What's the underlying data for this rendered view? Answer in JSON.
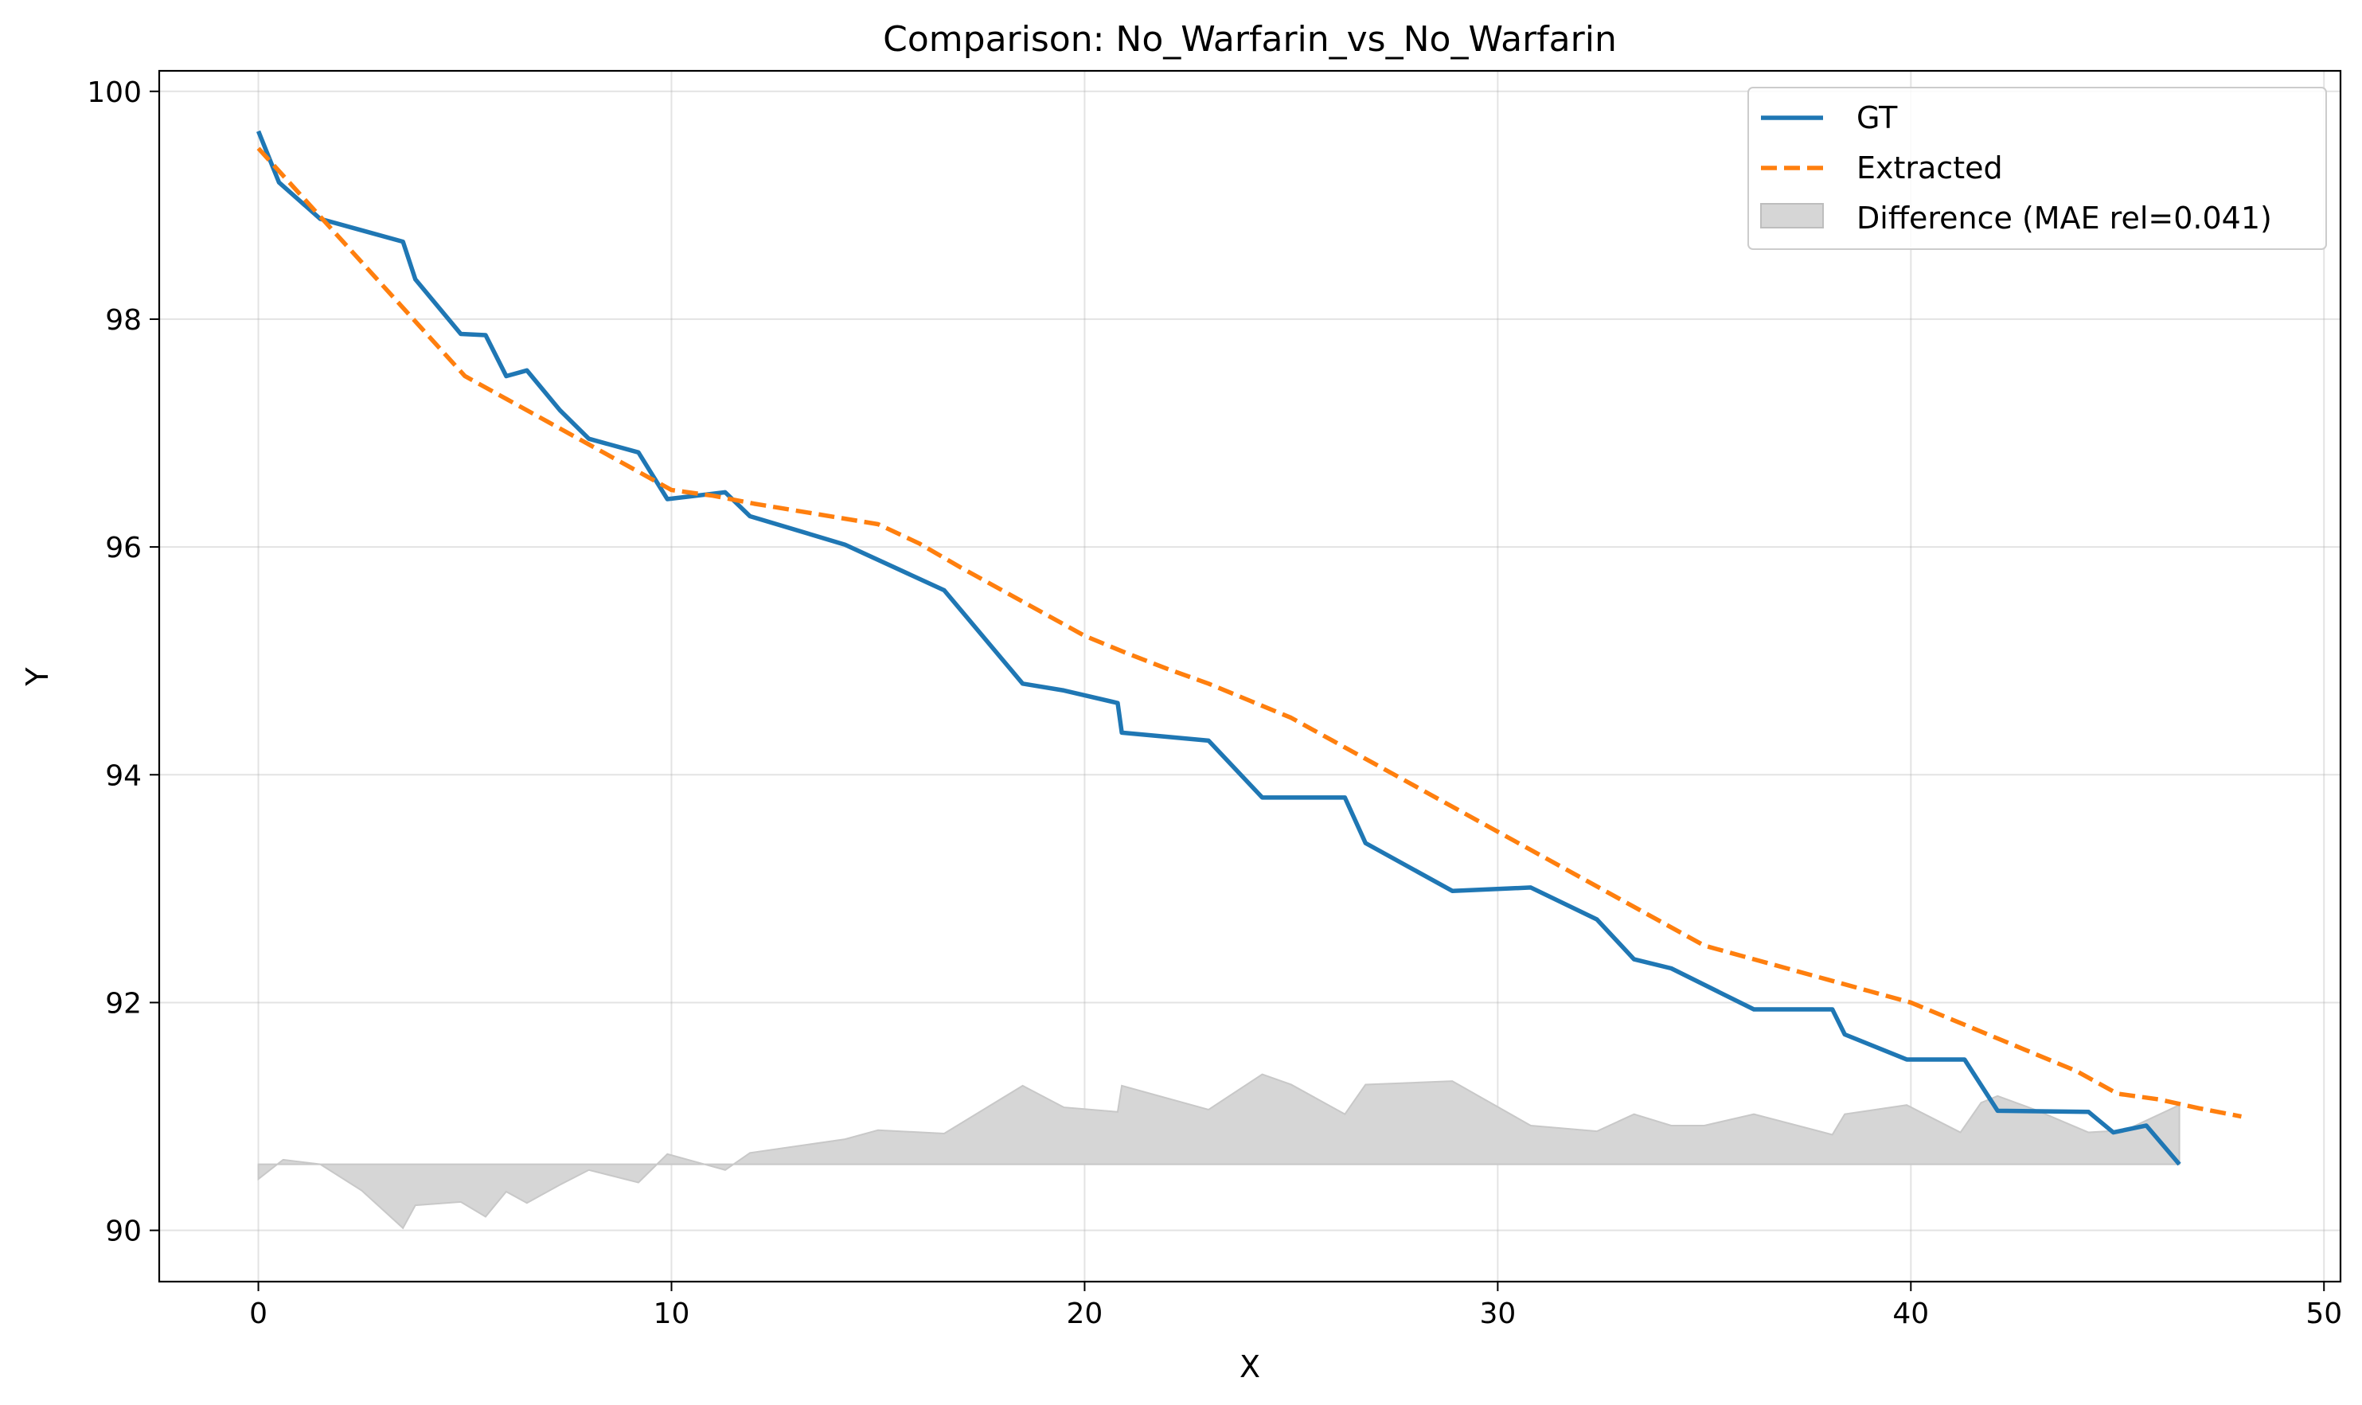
{
  "chart_data": {
    "type": "line",
    "title": "Comparison: No_Warfarin_vs_No_Warfarin",
    "xlabel": "X",
    "ylabel": "Y",
    "xlim": [
      -2.4,
      50.4
    ],
    "ylim": [
      89.55,
      100.18
    ],
    "xticks": [
      0,
      10,
      20,
      30,
      40,
      50
    ],
    "yticks": [
      90,
      92,
      94,
      96,
      98,
      100
    ],
    "grid": true,
    "legend_position": "top-right",
    "series": [
      {
        "name": "GT",
        "color": "#1f77b4",
        "style": "solid",
        "points": [
          [
            0,
            99.65
          ],
          [
            0.5,
            99.2
          ],
          [
            1.5,
            98.88
          ],
          [
            2.5,
            98.78
          ],
          [
            3.5,
            98.68
          ],
          [
            3.8,
            98.35
          ],
          [
            4.9,
            97.87
          ],
          [
            5.5,
            97.86
          ],
          [
            6,
            97.5
          ],
          [
            6.5,
            97.55
          ],
          [
            7.3,
            97.2
          ],
          [
            8,
            96.95
          ],
          [
            9.2,
            96.83
          ],
          [
            9.9,
            96.42
          ],
          [
            11.3,
            96.48
          ],
          [
            11.9,
            96.27
          ],
          [
            14.2,
            96.02
          ],
          [
            16.6,
            95.62
          ],
          [
            18.5,
            94.8
          ],
          [
            19.5,
            94.74
          ],
          [
            20.8,
            94.63
          ],
          [
            20.9,
            94.37
          ],
          [
            23,
            94.3
          ],
          [
            24.3,
            93.8
          ],
          [
            26.3,
            93.8
          ],
          [
            26.8,
            93.4
          ],
          [
            28.9,
            92.98
          ],
          [
            30.8,
            93.01
          ],
          [
            32.4,
            92.73
          ],
          [
            33.3,
            92.38
          ],
          [
            34.2,
            92.3
          ],
          [
            36.2,
            91.94
          ],
          [
            38.1,
            91.94
          ],
          [
            38.4,
            91.72
          ],
          [
            39.9,
            91.5
          ],
          [
            41.3,
            91.5
          ],
          [
            42.1,
            91.05
          ],
          [
            44.3,
            91.04
          ],
          [
            44.9,
            90.86
          ],
          [
            45.7,
            90.92
          ],
          [
            46.5,
            90.58
          ]
        ]
      },
      {
        "name": "Extracted",
        "color": "#ff7f0e",
        "style": "dashed",
        "points": [
          [
            0,
            99.5
          ],
          [
            1,
            99.1
          ],
          [
            2,
            98.7
          ],
          [
            3,
            98.3
          ],
          [
            4,
            97.9
          ],
          [
            5,
            97.5
          ],
          [
            6,
            97.3
          ],
          [
            7,
            97.1
          ],
          [
            8,
            96.9
          ],
          [
            9,
            96.7
          ],
          [
            10,
            96.5
          ],
          [
            11,
            96.45
          ],
          [
            12,
            96.38
          ],
          [
            13,
            96.32
          ],
          [
            14,
            96.26
          ],
          [
            15,
            96.2
          ],
          [
            16,
            96.03
          ],
          [
            17,
            95.82
          ],
          [
            18,
            95.62
          ],
          [
            19,
            95.42
          ],
          [
            20,
            95.22
          ],
          [
            21,
            95.07
          ],
          [
            22,
            94.93
          ],
          [
            23,
            94.8
          ],
          [
            24,
            94.65
          ],
          [
            25,
            94.5
          ],
          [
            26,
            94.3
          ],
          [
            27,
            94.1
          ],
          [
            28,
            93.9
          ],
          [
            29,
            93.7
          ],
          [
            30,
            93.5
          ],
          [
            31,
            93.3
          ],
          [
            32,
            93.1
          ],
          [
            33,
            92.9
          ],
          [
            34,
            92.7
          ],
          [
            35,
            92.5
          ],
          [
            36,
            92.4
          ],
          [
            37,
            92.3
          ],
          [
            38,
            92.2
          ],
          [
            39,
            92.1
          ],
          [
            40,
            92
          ],
          [
            41,
            91.85
          ],
          [
            42,
            91.7
          ],
          [
            43,
            91.55
          ],
          [
            44,
            91.4
          ],
          [
            45,
            91.2
          ],
          [
            46,
            91.15
          ],
          [
            47,
            91.07
          ],
          [
            48,
            91
          ]
        ]
      }
    ],
    "difference_band": {
      "name": "Difference (MAE rel=0.041)",
      "color": "#d6d6d6",
      "baseline": 90.58,
      "points": [
        [
          0,
          90.45
        ],
        [
          0.6,
          90.62
        ],
        [
          1.5,
          90.58
        ],
        [
          2.5,
          90.35
        ],
        [
          3.5,
          90.02
        ],
        [
          3.8,
          90.22
        ],
        [
          4.9,
          90.25
        ],
        [
          5.5,
          90.12
        ],
        [
          6,
          90.34
        ],
        [
          6.5,
          90.24
        ],
        [
          7.3,
          90.4
        ],
        [
          8,
          90.53
        ],
        [
          9.2,
          90.42
        ],
        [
          9.9,
          90.67
        ],
        [
          11.3,
          90.53
        ],
        [
          11.9,
          90.68
        ],
        [
          14.2,
          90.8
        ],
        [
          15,
          90.88
        ],
        [
          16.6,
          90.85
        ],
        [
          18.5,
          91.27
        ],
        [
          19.5,
          91.08
        ],
        [
          20.8,
          91.04
        ],
        [
          20.9,
          91.27
        ],
        [
          23,
          91.06
        ],
        [
          24.3,
          91.37
        ],
        [
          25,
          91.28
        ],
        [
          26.3,
          91.02
        ],
        [
          26.8,
          91.28
        ],
        [
          28.9,
          91.31
        ],
        [
          30.8,
          90.92
        ],
        [
          32.4,
          90.87
        ],
        [
          33.3,
          91.02
        ],
        [
          34.2,
          90.92
        ],
        [
          35,
          90.92
        ],
        [
          36.2,
          91.02
        ],
        [
          38.1,
          90.84
        ],
        [
          38.4,
          91.02
        ],
        [
          39.9,
          91.1
        ],
        [
          41.2,
          90.86
        ],
        [
          41.7,
          91.12
        ],
        [
          42.1,
          91.18
        ],
        [
          43,
          91.06
        ],
        [
          44.3,
          90.86
        ],
        [
          45.2,
          90.88
        ],
        [
          46.5,
          91.1
        ]
      ]
    }
  }
}
